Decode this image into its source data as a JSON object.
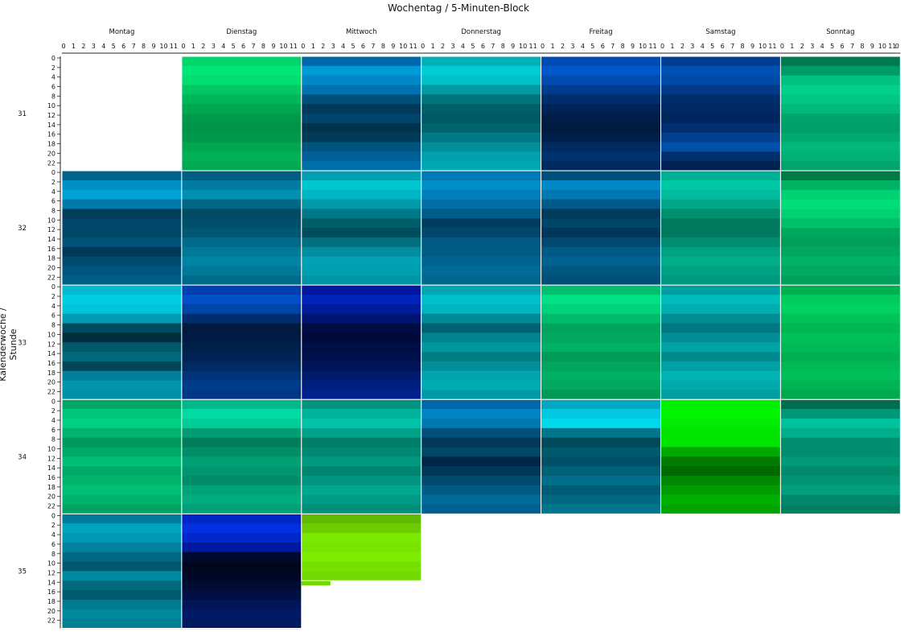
{
  "chart_data": {
    "type": "heatmap",
    "title": "Wochentag / 5-Minuten-Block",
    "ylabel": "Kalenderwoche / Stunde",
    "columns": [
      "Montag",
      "Dienstag",
      "Mittwoch",
      "Donnerstag",
      "Freitag",
      "Samstag",
      "Sonntag"
    ],
    "rows": [
      "31",
      "32",
      "33",
      "34",
      "35"
    ],
    "inner_x_ticks": [
      "0",
      "1",
      "2",
      "3",
      "4",
      "5",
      "6",
      "7",
      "8",
      "9",
      "10",
      "11"
    ],
    "inner_y_ticks": [
      "0",
      "2",
      "4",
      "6",
      "8",
      "10",
      "12",
      "14",
      "16",
      "18",
      "20",
      "22"
    ],
    "cells": [
      {
        "week": "31",
        "day": "Montag",
        "empty": true
      },
      {
        "week": "31",
        "day": "Dienstag",
        "bands": [
          "#00d46a",
          "#00e577",
          "#00de72",
          "#00c863",
          "#00b65a",
          "#00a750",
          "#009b4a",
          "#009448",
          "#00984a",
          "#00a750",
          "#00b158",
          "#00aa52"
        ]
      },
      {
        "week": "31",
        "day": "Mittwoch",
        "bands": [
          "#0067a8",
          "#009ad8",
          "#0088c8",
          "#0071b0",
          "#00507a",
          "#003a58",
          "#00466a",
          "#00344e",
          "#003c5a",
          "#00557e",
          "#00609a",
          "#0070ac"
        ]
      },
      {
        "week": "31",
        "day": "Donnerstag",
        "bands": [
          "#00b2b8",
          "#00ccd6",
          "#00c0c8",
          "#009aa0",
          "#00767c",
          "#00606a",
          "#005a66",
          "#006470",
          "#007a86",
          "#008e9a",
          "#00a2ae",
          "#00a8b4"
        ]
      },
      {
        "week": "31",
        "day": "Freitag",
        "bands": [
          "#004ab4",
          "#0058c8",
          "#004cb0",
          "#003c8e",
          "#002d6e",
          "#002254",
          "#001e48",
          "#001a40",
          "#00204c",
          "#002a60",
          "#003270",
          "#002a62"
        ]
      },
      {
        "week": "31",
        "day": "Samstag",
        "bands": [
          "#003e92",
          "#0050b4",
          "#004aa8",
          "#003a88",
          "#002e6c",
          "#002862",
          "#002660",
          "#002e70",
          "#00408e",
          "#0050a8",
          "#00306e",
          "#002252"
        ]
      },
      {
        "week": "31",
        "day": "Sonntag",
        "bands": [
          "#007a52",
          "#009a66",
          "#00c082",
          "#00d28c",
          "#00c884",
          "#00b87a",
          "#00a46c",
          "#00a06a",
          "#00aa70",
          "#00b87a",
          "#00b276",
          "#00a46c"
        ]
      },
      {
        "week": "32",
        "day": "Montag",
        "bands": [
          "#00638e",
          "#0090c4",
          "#00a2d4",
          "#007aa8",
          "#003e5a",
          "#00486a",
          "#004868",
          "#005276",
          "#00385a",
          "#004a70",
          "#00567e",
          "#005e86"
        ]
      },
      {
        "week": "32",
        "day": "Dienstag",
        "bands": [
          "#005e82",
          "#007aa0",
          "#0090b2",
          "#006886",
          "#004c66",
          "#00506c",
          "#005876",
          "#006a8a",
          "#007898",
          "#0084a6",
          "#007898",
          "#006a8a"
        ]
      },
      {
        "week": "32",
        "day": "Mittwoch",
        "bands": [
          "#00a0b2",
          "#00c6d0",
          "#00b6c4",
          "#009aaa",
          "#007888",
          "#005e6c",
          "#004e5c",
          "#007080",
          "#008e9e",
          "#00a2b4",
          "#00a0b2",
          "#0096a8"
        ]
      },
      {
        "week": "32",
        "day": "Donnerstag",
        "bands": [
          "#0078b4",
          "#008ec8",
          "#0080b8",
          "#0070a6",
          "#005c88",
          "#003d5e",
          "#00486c",
          "#005a84",
          "#005c86",
          "#00628e",
          "#006a98",
          "#006890"
        ]
      },
      {
        "week": "32",
        "day": "Freitag",
        "bands": [
          "#004e7a",
          "#0088c8",
          "#0078b4",
          "#005a8a",
          "#003c5c",
          "#004468",
          "#003658",
          "#004a72",
          "#005a88",
          "#00628e",
          "#005680",
          "#00507a"
        ]
      },
      {
        "week": "32",
        "day": "Samstag",
        "bands": [
          "#00b094",
          "#00c8a4",
          "#00bc9c",
          "#00a888",
          "#00906e",
          "#007a5c",
          "#007a5e",
          "#008e70",
          "#00a282",
          "#00ae8a",
          "#00a284",
          "#009a7e"
        ]
      },
      {
        "week": "32",
        "day": "Sonntag",
        "bands": [
          "#007a44",
          "#00b264",
          "#00d072",
          "#00de7a",
          "#00d273",
          "#00c06b",
          "#00a85c",
          "#00a05a",
          "#00a85e",
          "#00b264",
          "#00aa60",
          "#00a05c"
        ]
      },
      {
        "week": "33",
        "day": "Montag",
        "bands": [
          "#00bad2",
          "#00cce2",
          "#00c4da",
          "#009cb2",
          "#004c5e",
          "#00303e",
          "#005a6c",
          "#006a7c",
          "#004858",
          "#00809a",
          "#0096ae",
          "#0090a8"
        ]
      },
      {
        "week": "33",
        "day": "Dienstag",
        "bands": [
          "#0040b0",
          "#0050c8",
          "#0044a8",
          "#002c70",
          "#001a40",
          "#001c46",
          "#00204c",
          "#002454",
          "#002a62",
          "#003478",
          "#003c8c",
          "#003682"
        ]
      },
      {
        "week": "33",
        "day": "Mittwoch",
        "bands": [
          "#0018a0",
          "#0024b8",
          "#001c9a",
          "#001474",
          "#000c44",
          "#000a3a",
          "#000e48",
          "#00104e",
          "#001458",
          "#001c6c",
          "#002080",
          "#00228e"
        ]
      },
      {
        "week": "33",
        "day": "Donnerstag",
        "bands": [
          "#00a6b2",
          "#00c0cc",
          "#00b4c0",
          "#008a98",
          "#006270",
          "#00848e",
          "#00989e",
          "#007e86",
          "#008e98",
          "#00a6ae",
          "#00acb4",
          "#009aa4"
        ]
      },
      {
        "week": "33",
        "day": "Freitag",
        "bands": [
          "#00c070",
          "#00e084",
          "#00d27c",
          "#00bc6c",
          "#00a45c",
          "#00a860",
          "#00b066",
          "#009c58",
          "#00a65e",
          "#00b064",
          "#00a860",
          "#009a56"
        ]
      },
      {
        "week": "33",
        "day": "Samstag",
        "bands": [
          "#00a0a2",
          "#00bcbc",
          "#00b0b0",
          "#008e92",
          "#007a80",
          "#008e94",
          "#00a2a6",
          "#008a8e",
          "#00a0a4",
          "#00b4b6",
          "#00aaac",
          "#009ea0"
        ]
      },
      {
        "week": "33",
        "day": "Sonntag",
        "bands": [
          "#00b050",
          "#00cc5c",
          "#00d262",
          "#00c458",
          "#00b852",
          "#00c05a",
          "#00ba56",
          "#00b052",
          "#00b856",
          "#00c05a",
          "#00b454",
          "#00a84e"
        ]
      },
      {
        "week": "34",
        "day": "Montag",
        "bands": [
          "#00a864",
          "#00c478",
          "#00d082",
          "#00b470",
          "#009a5e",
          "#00a866",
          "#00be74",
          "#00aa68",
          "#00b46c",
          "#00c076",
          "#00b26c",
          "#00a462"
        ]
      },
      {
        "week": "34",
        "day": "Dienstag",
        "bands": [
          "#00b88c",
          "#00daa4",
          "#00cc98",
          "#009c72",
          "#007e5c",
          "#008e68",
          "#00a074",
          "#009670",
          "#008e6a",
          "#00a47a",
          "#00ac80",
          "#00a078"
        ]
      },
      {
        "week": "34",
        "day": "Mittwoch",
        "bands": [
          "#009480",
          "#00b49c",
          "#00c2a8",
          "#00a28a",
          "#007e6a",
          "#008a74",
          "#009a82",
          "#008670",
          "#009680",
          "#00a890",
          "#009c86",
          "#00907a"
        ]
      },
      {
        "week": "34",
        "day": "Donnerstag",
        "bands": [
          "#0068a8",
          "#0084c4",
          "#0078b4",
          "#00507a",
          "#003a58",
          "#004866",
          "#00264a",
          "#003858",
          "#004c70",
          "#005c86",
          "#006a98",
          "#006090"
        ]
      },
      {
        "week": "34",
        "day": "Freitag",
        "bands": [
          "#00a8c4",
          "#00c8e0",
          "#00d8ec",
          "#00768c",
          "#004a5a",
          "#005a6c",
          "#00506a",
          "#006078",
          "#006e88",
          "#005c74",
          "#006a82",
          "#00768e"
        ]
      },
      {
        "week": "34",
        "day": "Samstag",
        "bands": [
          "#00f000",
          "#00f400",
          "#00ec00",
          "#00e600",
          "#00e200",
          "#00a800",
          "#007a00",
          "#006a00",
          "#008800",
          "#009c00",
          "#00b000",
          "#00a400"
        ]
      },
      {
        "week": "34",
        "day": "Sonntag",
        "bands": [
          "#006e4e",
          "#00987a",
          "#00c29c",
          "#00ae8a",
          "#009070",
          "#008e6e",
          "#009a78",
          "#008c6a",
          "#009472",
          "#00a07c",
          "#00886a",
          "#007e60"
        ]
      },
      {
        "week": "35",
        "day": "Montag",
        "bands": [
          "#007c98",
          "#00a4c0",
          "#0098b4",
          "#00829e",
          "#006a84",
          "#00586e",
          "#008aa2",
          "#006a7c",
          "#005a70",
          "#007c92",
          "#00889c",
          "#007e94"
        ]
      },
      {
        "week": "35",
        "day": "Dienstag",
        "bands": [
          "#0026c8",
          "#0030e0",
          "#0028c8",
          "#0018a0",
          "#000a30",
          "#00061c",
          "#000828",
          "#000c34",
          "#001044",
          "#001658",
          "#001a68",
          "#00185e"
        ]
      },
      {
        "week": "35",
        "day": "Mittwoch",
        "partial": true,
        "bands": [
          "#60b800",
          "#6ccc00",
          "#7ae800",
          "#78e400",
          "#7cec00",
          "#76e000",
          "#72d800"
        ]
      }
    ]
  }
}
